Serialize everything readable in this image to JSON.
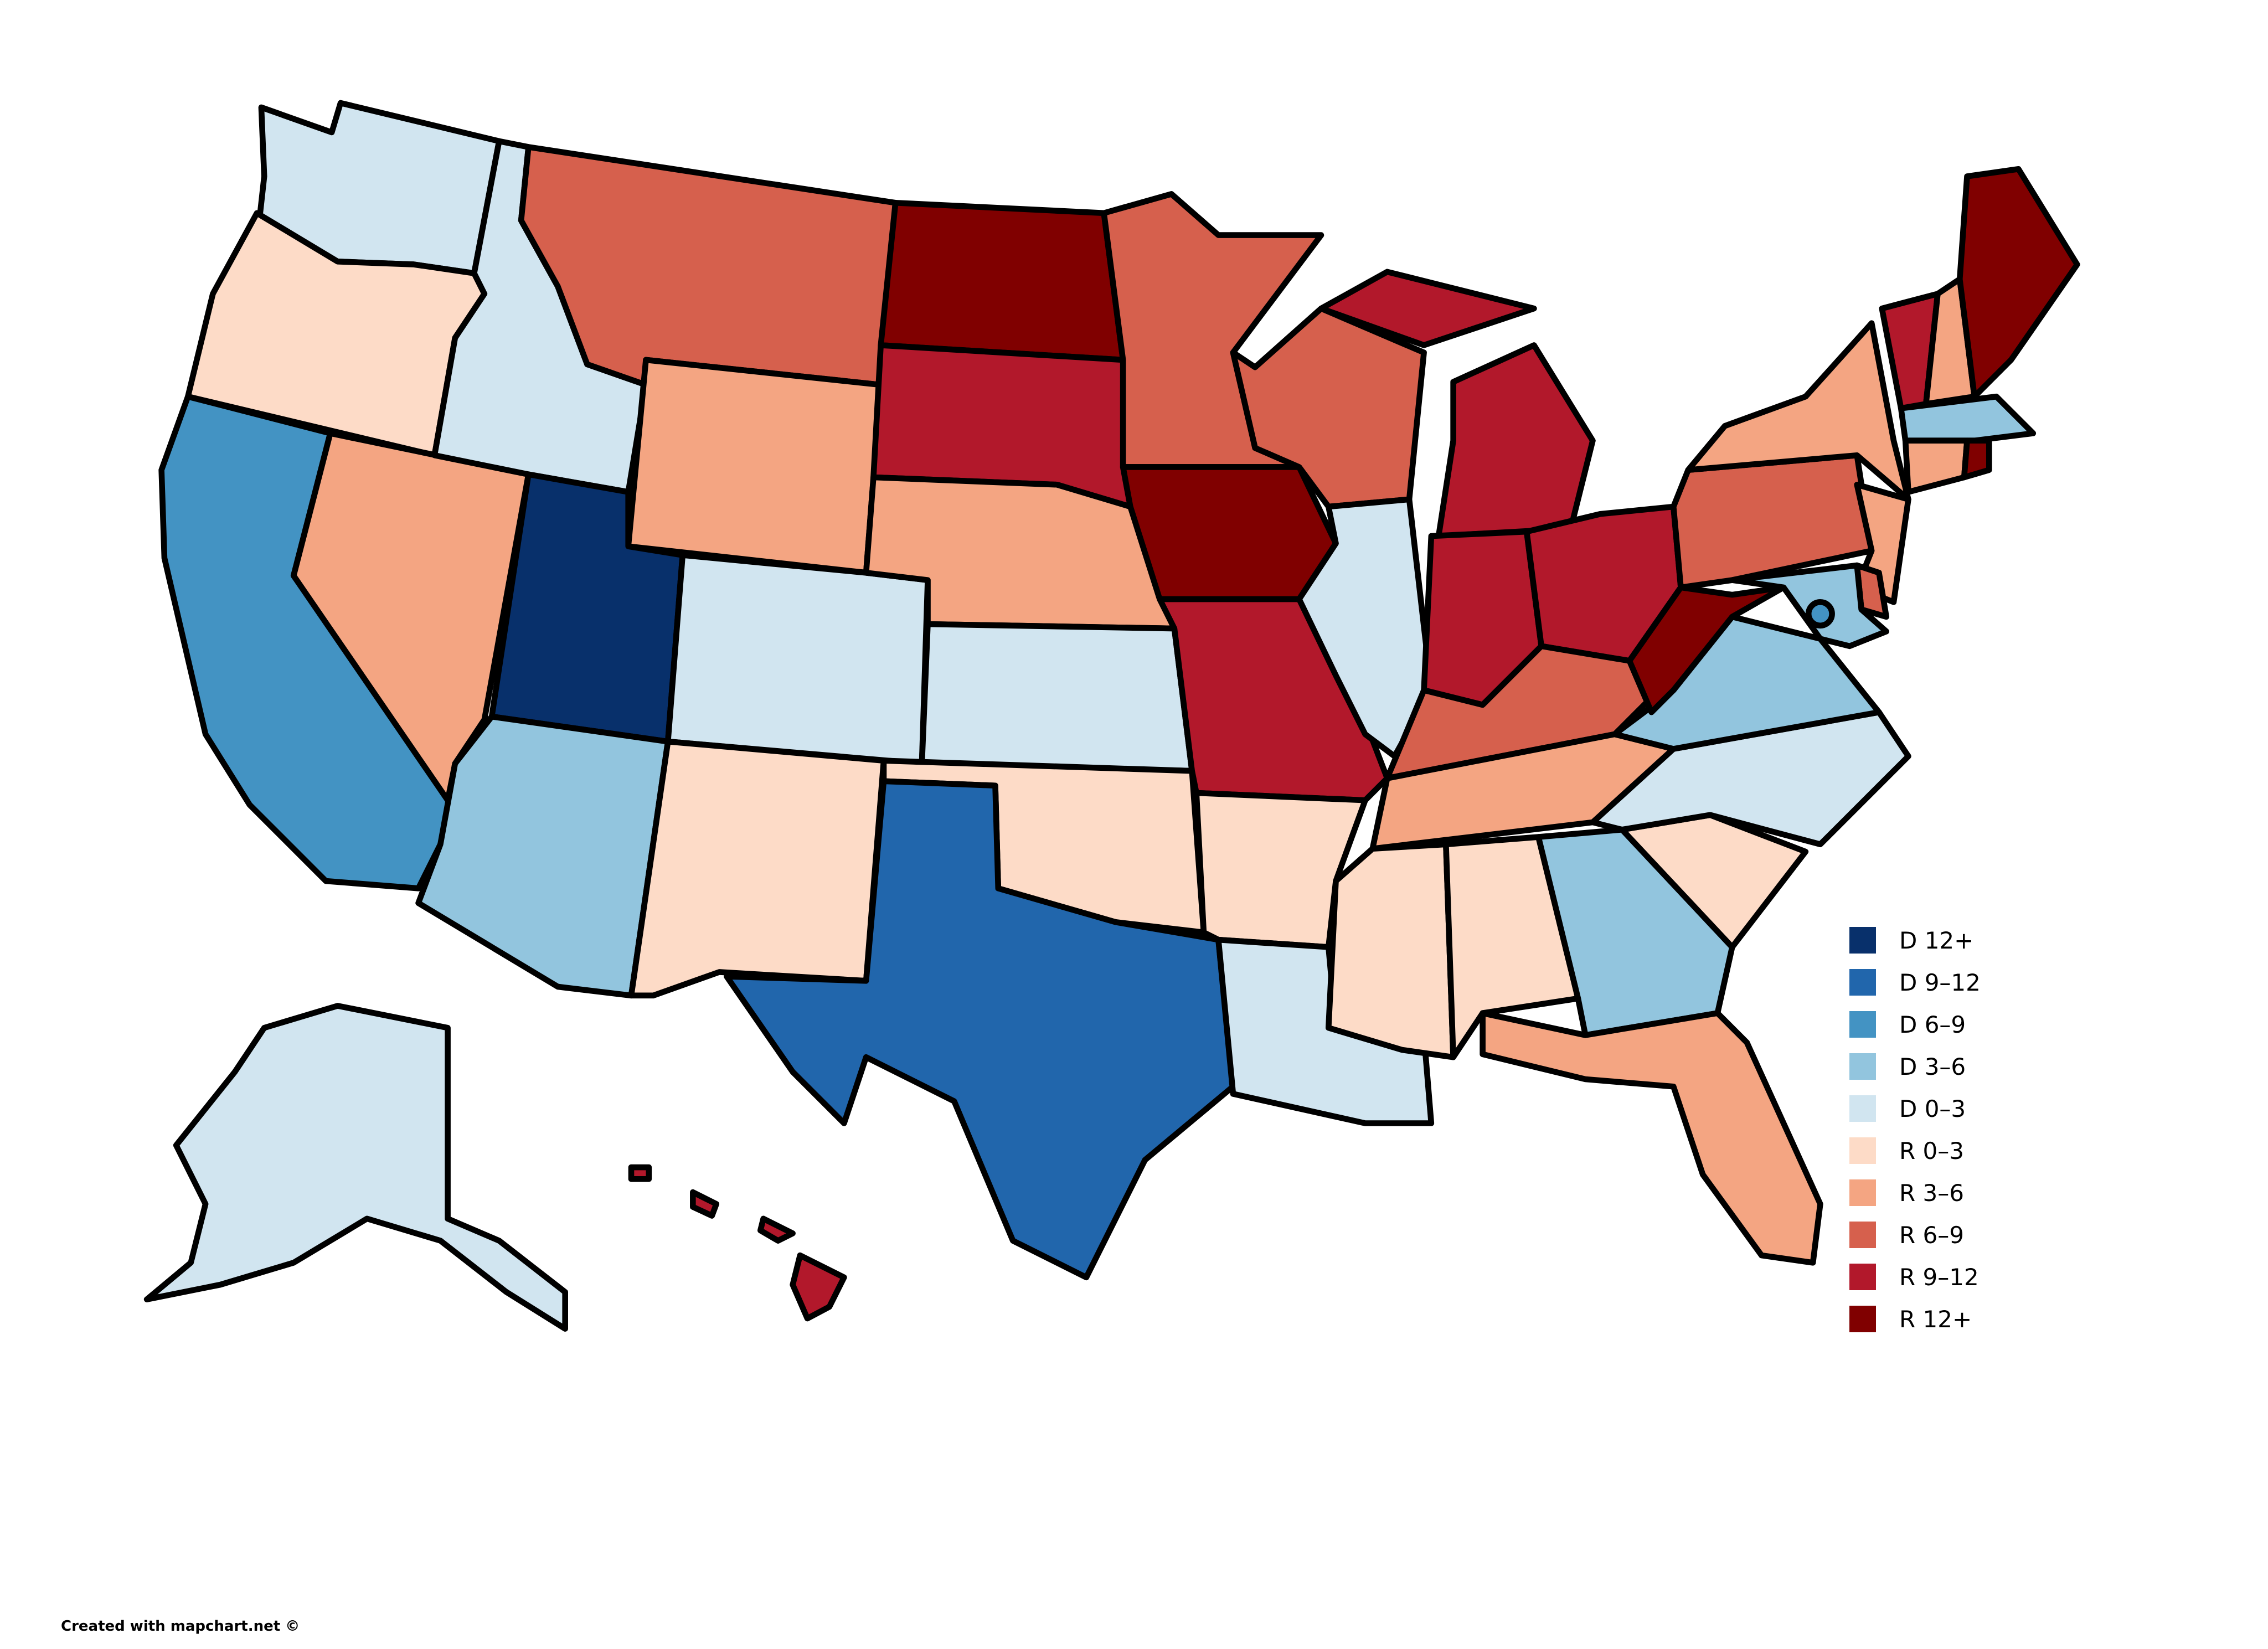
{
  "legend": [
    {
      "label": "D 12+",
      "color": "#08306b"
    },
    {
      "label": "D 9–12",
      "color": "#2166ac"
    },
    {
      "label": "D 6–9",
      "color": "#4393c3"
    },
    {
      "label": "D 3–6",
      "color": "#92c5de"
    },
    {
      "label": "D 0–3",
      "color": "#d1e5f0"
    },
    {
      "label": "R 0–3",
      "color": "#fddbc7"
    },
    {
      "label": "R 3–6",
      "color": "#f4a582"
    },
    {
      "label": "R 6–9",
      "color": "#d6604d"
    },
    {
      "label": "R 9–12",
      "color": "#b2182b"
    },
    {
      "label": "R 12+",
      "color": "#800000"
    }
  ],
  "states": {
    "WA": "D 0–3",
    "OR": "R 0–3",
    "CA": "D 6–9",
    "NV": "R 3–6",
    "ID": "D 0–3",
    "MT": "R 6–9",
    "WY": "R 3–6",
    "UT": "D 12+",
    "AZ": "D 3–6",
    "CO": "D 0–3",
    "NM": "R 0–3",
    "ND": "R 12+",
    "SD": "R 9–12",
    "NE": "R 3–6",
    "KS": "D 0–3",
    "OK": "R 0–3",
    "TX": "D 9–12",
    "MN": "R 6–9",
    "IA": "R 12+",
    "MO": "R 9–12",
    "AR": "R 0–3",
    "LA": "D 0–3",
    "WI": "R 6–9",
    "IL": "D 0–3",
    "MI": "R 9–12",
    "IN": "R 9–12",
    "OH": "R 9–12",
    "KY": "R 6–9",
    "TN": "R 3–6",
    "MS": "R 0–3",
    "AL": "R 0–3",
    "GA": "D 3–6",
    "FL": "R 3–6",
    "SC": "R 0–3",
    "NC": "D 0–3",
    "VA": "D 3–6",
    "WV": "R 12+",
    "PA": "R 6–9",
    "NY": "R 3–6",
    "VT": "R 9–12",
    "NH": "R 3–6",
    "ME": "R 12+",
    "MA": "D 3–6",
    "RI": "R 12+",
    "CT": "R 3–6",
    "NJ": "R 3–6",
    "DE": "R 6–9",
    "MD": "D 3–6",
    "DC": "D 6–9",
    "AK": "D 0–3",
    "HI": "R 9–12"
  },
  "credit": "Created with mapchart.net ©"
}
